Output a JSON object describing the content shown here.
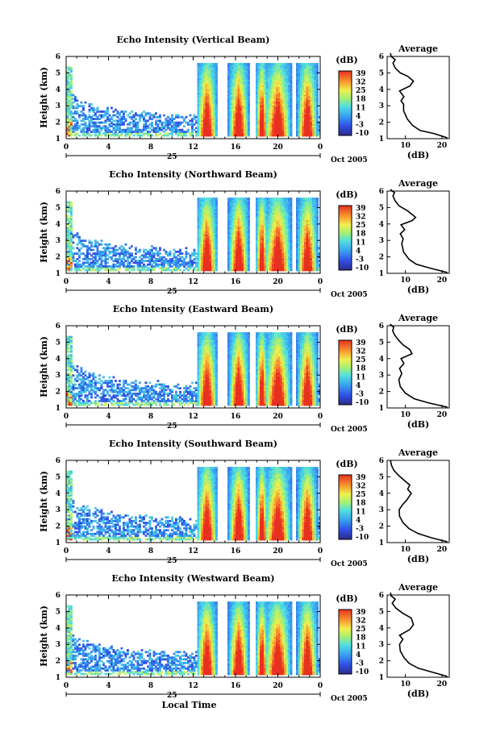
{
  "figure": {
    "xlabel": "Local Time",
    "date_label": "Oct 2005",
    "day_label": "25",
    "ylabel": "Height (km)",
    "cbar_unit": "(dB)",
    "avg_title": "Average",
    "avg_xlabel": "(dB)"
  },
  "chart_data": [
    {
      "type": "heatmap",
      "title": "Echo Intensity (Vertical Beam)",
      "xlabel": "",
      "ylabel": "Height (km)",
      "x_ticks": [
        "0",
        "4",
        "8",
        "12",
        "16",
        "20",
        "0"
      ],
      "xlim": [
        0,
        24
      ],
      "ylim": [
        1,
        6
      ],
      "y_ticks": [
        "1",
        "2",
        "3",
        "4",
        "5",
        "6"
      ],
      "colorbar": {
        "label": "(dB)",
        "ticks": [
          "39",
          "32",
          "25",
          "18",
          "11",
          "4",
          "-3",
          "-10"
        ],
        "range": [
          -10,
          39
        ]
      }
    },
    {
      "type": "heatmap",
      "title": "Echo Intensity (Northward Beam)",
      "xlabel": "",
      "ylabel": "Height (km)",
      "x_ticks": [
        "0",
        "4",
        "8",
        "12",
        "16",
        "20",
        "0"
      ],
      "xlim": [
        0,
        24
      ],
      "ylim": [
        1,
        6
      ],
      "y_ticks": [
        "1",
        "2",
        "3",
        "4",
        "5",
        "6"
      ],
      "colorbar": {
        "label": "(dB)",
        "ticks": [
          "39",
          "32",
          "25",
          "18",
          "11",
          "4",
          "-3",
          "-10"
        ],
        "range": [
          -10,
          39
        ]
      }
    },
    {
      "type": "heatmap",
      "title": "Echo Intensity (Eastward Beam)",
      "xlabel": "",
      "ylabel": "Height (km)",
      "x_ticks": [
        "0",
        "4",
        "8",
        "12",
        "16",
        "20",
        "0"
      ],
      "xlim": [
        0,
        24
      ],
      "ylim": [
        1,
        6
      ],
      "y_ticks": [
        "1",
        "2",
        "3",
        "4",
        "5",
        "6"
      ],
      "colorbar": {
        "label": "(dB)",
        "ticks": [
          "39",
          "32",
          "25",
          "18",
          "11",
          "4",
          "-3",
          "-10"
        ],
        "range": [
          -10,
          39
        ]
      }
    },
    {
      "type": "heatmap",
      "title": "Echo Intensity (Southward Beam)",
      "xlabel": "",
      "ylabel": "Height (km)",
      "x_ticks": [
        "0",
        "4",
        "8",
        "12",
        "16",
        "20",
        "0"
      ],
      "xlim": [
        0,
        24
      ],
      "ylim": [
        1,
        6
      ],
      "y_ticks": [
        "1",
        "2",
        "3",
        "4",
        "5",
        "6"
      ],
      "colorbar": {
        "label": "(dB)",
        "ticks": [
          "39",
          "32",
          "25",
          "18",
          "11",
          "4",
          "-3",
          "-10"
        ],
        "range": [
          -10,
          39
        ]
      }
    },
    {
      "type": "heatmap",
      "title": "Echo Intensity (Westward Beam)",
      "xlabel": "Local Time",
      "ylabel": "Height (km)",
      "x_ticks": [
        "0",
        "4",
        "8",
        "12",
        "16",
        "20",
        "0"
      ],
      "xlim": [
        0,
        24
      ],
      "ylim": [
        1,
        6
      ],
      "y_ticks": [
        "1",
        "2",
        "3",
        "4",
        "5",
        "6"
      ],
      "colorbar": {
        "label": "(dB)",
        "ticks": [
          "39",
          "32",
          "25",
          "18",
          "11",
          "4",
          "-3",
          "-10"
        ],
        "range": [
          -10,
          39
        ]
      }
    },
    {
      "type": "line",
      "title": "Average",
      "xlabel": "(dB)",
      "ylabel": "",
      "xlim": [
        5,
        22
      ],
      "ylim": [
        1,
        6
      ],
      "x_ticks": [
        "10",
        "20"
      ],
      "y_ticks": [
        "1",
        "2",
        "3",
        "4",
        "5",
        "6"
      ],
      "x": [
        21.5,
        18,
        14,
        12,
        10.5,
        9.5,
        9.5,
        8.8,
        9.6,
        8.4,
        11.2,
        12.2,
        10.6,
        8.6,
        7.2,
        6.6,
        7.2,
        6.1,
        5.9
      ],
      "y": [
        1.05,
        1.3,
        1.5,
        1.8,
        2.2,
        2.7,
        3.1,
        3.3,
        3.55,
        3.9,
        4.2,
        4.5,
        4.8,
        5.0,
        5.3,
        5.6,
        5.8,
        6.0,
        6.2
      ]
    },
    {
      "type": "line",
      "title": "Average",
      "xlabel": "(dB)",
      "ylabel": "",
      "xlim": [
        5,
        22
      ],
      "ylim": [
        1,
        6
      ],
      "x_ticks": [
        "10",
        "20"
      ],
      "y_ticks": [
        "1",
        "2",
        "3",
        "4",
        "5",
        "6"
      ],
      "x": [
        21.5,
        17,
        13,
        11,
        9.5,
        9.0,
        9.4,
        8.6,
        9.8,
        8.8,
        11.8,
        12.8,
        10.6,
        8.3,
        7.2,
        6.6,
        7.0,
        5.9
      ],
      "y": [
        1.05,
        1.3,
        1.55,
        1.85,
        2.3,
        2.8,
        3.1,
        3.4,
        3.65,
        3.95,
        4.2,
        4.4,
        4.8,
        5.1,
        5.4,
        5.7,
        5.9,
        6.1
      ]
    },
    {
      "type": "line",
      "title": "Average",
      "xlabel": "(dB)",
      "ylabel": "",
      "xlim": [
        5,
        22
      ],
      "ylim": [
        1,
        6
      ],
      "x_ticks": [
        "10",
        "20"
      ],
      "y_ticks": [
        "1",
        "2",
        "3",
        "4",
        "5",
        "6"
      ],
      "x": [
        21.5,
        16.5,
        12.5,
        10,
        8.6,
        8.2,
        9.0,
        8.4,
        9.6,
        8.8,
        11.8,
        11.2,
        9.3,
        8.0,
        7.0,
        6.5,
        6.8,
        5.8
      ],
      "y": [
        1.05,
        1.3,
        1.55,
        1.9,
        2.3,
        2.7,
        3.1,
        3.4,
        3.7,
        4.0,
        4.3,
        4.55,
        4.85,
        5.15,
        5.45,
        5.7,
        5.9,
        6.1
      ]
    },
    {
      "type": "line",
      "title": "Average",
      "xlabel": "(dB)",
      "ylabel": "",
      "xlim": [
        5,
        22
      ],
      "ylim": [
        1,
        6
      ],
      "x_ticks": [
        "10",
        "20"
      ],
      "y_ticks": [
        "1",
        "2",
        "3",
        "4",
        "5",
        "6"
      ],
      "x": [
        21.5,
        17,
        13.5,
        11,
        9.4,
        8.4,
        8.3,
        9.2,
        10.4,
        11.0,
        11.6,
        10.6,
        11.2,
        9.6,
        8.1,
        6.8,
        6.2,
        5.9
      ],
      "y": [
        1.05,
        1.3,
        1.55,
        1.85,
        2.2,
        2.6,
        3.0,
        3.3,
        3.6,
        3.8,
        4.0,
        4.25,
        4.5,
        4.8,
        5.1,
        5.4,
        5.7,
        6.0
      ]
    },
    {
      "type": "line",
      "title": "Average",
      "xlabel": "(dB)",
      "ylabel": "",
      "xlim": [
        5,
        22
      ],
      "ylim": [
        1,
        6
      ],
      "x_ticks": [
        "10",
        "20"
      ],
      "y_ticks": [
        "1",
        "2",
        "3",
        "4",
        "5",
        "6"
      ],
      "x": [
        21.5,
        17.5,
        13.5,
        11,
        9.6,
        8.6,
        8.4,
        9.3,
        8.4,
        11.2,
        12.2,
        11.6,
        9.2,
        7.4,
        6.4,
        7.2,
        6.1,
        5.9
      ],
      "y": [
        1.05,
        1.3,
        1.55,
        1.85,
        2.2,
        2.6,
        3.0,
        3.3,
        3.55,
        3.9,
        4.2,
        4.6,
        4.9,
        5.2,
        5.5,
        5.75,
        5.95,
        6.15
      ]
    }
  ]
}
